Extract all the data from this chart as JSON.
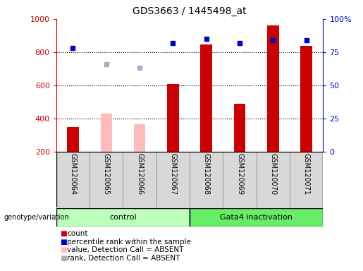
{
  "title": "GDS3663 / 1445498_at",
  "samples": [
    "GSM120064",
    "GSM120065",
    "GSM120066",
    "GSM120067",
    "GSM120068",
    "GSM120069",
    "GSM120070",
    "GSM120071"
  ],
  "count_values": [
    350,
    null,
    null,
    610,
    845,
    490,
    960,
    840
  ],
  "count_absent_values": [
    null,
    430,
    365,
    null,
    null,
    null,
    null,
    null
  ],
  "percentile_values": [
    78,
    null,
    null,
    82,
    85,
    82,
    84,
    84
  ],
  "percentile_absent_values": [
    null,
    66,
    63,
    null,
    null,
    null,
    null,
    null
  ],
  "ylim_left": [
    200,
    1000
  ],
  "ylim_right": [
    0,
    100
  ],
  "yticks_left": [
    200,
    400,
    600,
    800,
    1000
  ],
  "yticks_right": [
    0,
    25,
    50,
    75,
    100
  ],
  "ytick_right_labels": [
    "0",
    "25",
    "50",
    "75",
    "100%"
  ],
  "grid_lines": [
    400,
    600,
    800
  ],
  "color_count": "#cc0000",
  "color_count_absent": "#ffbbbb",
  "color_percentile": "#0000cc",
  "color_percentile_absent": "#aaaacc",
  "color_group_control": "#bbffbb",
  "color_group_gata4": "#66ee66",
  "color_xlabels_bg": "#d8d8d8",
  "bar_width": 0.35,
  "legend_items": [
    {
      "label": "count",
      "color": "#cc0000"
    },
    {
      "label": "percentile rank within the sample",
      "color": "#0000cc"
    },
    {
      "label": "value, Detection Call = ABSENT",
      "color": "#ffbbbb"
    },
    {
      "label": "rank, Detection Call = ABSENT",
      "color": "#aaaacc"
    }
  ]
}
